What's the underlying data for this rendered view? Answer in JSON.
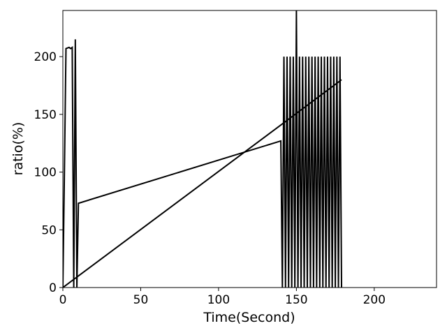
{
  "chart_data": {
    "type": "line",
    "title": "",
    "xlabel": "Time(Second)",
    "ylabel": "ratio(%)",
    "xlim": [
      0,
      240
    ],
    "ylim": [
      0,
      240
    ],
    "x_ticks": [
      0,
      50,
      100,
      150,
      200
    ],
    "y_ticks": [
      0,
      50,
      100,
      150,
      200
    ],
    "x_tick_labels": [
      "0",
      "50",
      "100",
      "150",
      "200"
    ],
    "y_tick_labels": [
      "0",
      "50",
      "100",
      "150",
      "200"
    ],
    "grid": false,
    "legend": false,
    "line_color": "#000000",
    "series": [
      {
        "x": [
          0,
          1,
          2,
          4,
          5,
          6,
          7,
          8,
          9,
          10,
          140,
          141,
          142,
          143,
          144,
          145,
          146,
          147,
          148,
          149,
          150,
          151,
          152,
          153,
          154,
          155,
          156,
          157,
          158,
          159,
          160,
          161,
          162,
          163,
          164,
          165,
          166,
          167,
          168,
          169,
          170,
          171,
          172,
          173,
          174,
          175,
          176,
          177,
          178,
          179
        ],
        "y": [
          0,
          100,
          207,
          208,
          207,
          208,
          0,
          215,
          0,
          73,
          127,
          0,
          200,
          0,
          200,
          0,
          200,
          0,
          200,
          0,
          240,
          0,
          200,
          0,
          200,
          0,
          200,
          0,
          200,
          0,
          200,
          0,
          200,
          0,
          200,
          0,
          200,
          0,
          200,
          0,
          200,
          0,
          200,
          0,
          200,
          0,
          200,
          0,
          200,
          0
        ]
      },
      {
        "x": [
          0,
          179
        ],
        "y": [
          0,
          180
        ]
      }
    ]
  }
}
